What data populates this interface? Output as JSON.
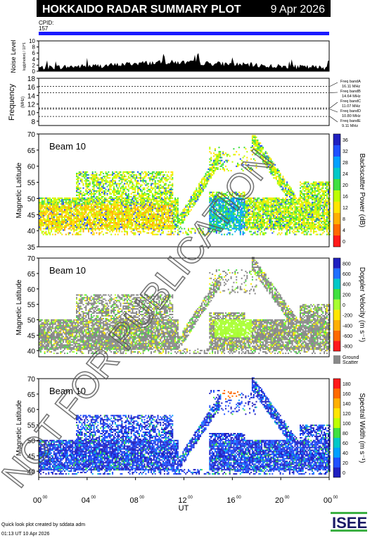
{
  "header": {
    "title": "HOKKAIDO RADAR SUMMARY PLOT",
    "date": "9 Apr 2026",
    "cpid_label": "CPID:",
    "cpid_value": "157"
  },
  "footer": {
    "line1": "Quick look plot created by sddata adm",
    "line2": "01:13 UT 10 Apr 2026",
    "logo": "ISEE",
    "watermark": "NOT FOR PUBLICATION"
  },
  "colors": {
    "cpid_bar": "#1a1aff",
    "ground_scatter": "#888888",
    "accent_green": "#3cb043"
  },
  "chart_data": [
    {
      "id": "noise",
      "type": "area",
      "ylabel": "Noise Level",
      "ylabel_sub": "log(photon) / 10^1",
      "ylim": [
        0,
        10
      ],
      "yticks": [
        "0",
        "2",
        "4",
        "6",
        "8",
        "10"
      ],
      "x": [
        0,
        1,
        2,
        3,
        4,
        5,
        6,
        7,
        8,
        9,
        10,
        11,
        12,
        13,
        14,
        15,
        16,
        17,
        18,
        19,
        20,
        21,
        22,
        23,
        24
      ],
      "values": [
        1.2,
        1.3,
        1.4,
        1.6,
        1.7,
        1.8,
        2.0,
        2.3,
        2.6,
        2.8,
        2.9,
        3.0,
        2.9,
        2.8,
        2.6,
        2.5,
        2.4,
        2.2,
        2.0,
        1.8,
        1.6,
        1.5,
        1.4,
        1.3,
        1.2
      ]
    },
    {
      "id": "frequency",
      "type": "line",
      "ylabel": "Frequency",
      "ylabel_sub": "(MHz)",
      "ylim": [
        7,
        18
      ],
      "yticks": [
        "8",
        "10",
        "12",
        "14",
        "16",
        "18"
      ],
      "bands": [
        {
          "name": "Freq bandA",
          "label": "16.11 MHz",
          "value": 16.11
        },
        {
          "name": "Freq bandB",
          "label": "14.64 MHz",
          "value": 14.64
        },
        {
          "name": "Freq bandC",
          "label": "11.07 MHz",
          "value": 11.07
        },
        {
          "name": "Freq bandD",
          "label": "10.80 MHz",
          "value": 10.8
        },
        {
          "name": "Freq bandE",
          "label": "9.11 MHz",
          "value": 9.11
        }
      ]
    },
    {
      "id": "power",
      "type": "heatmap",
      "beam_label": "Beam 10",
      "ylabel": "Magnetic Latitude",
      "ylim": [
        35,
        70
      ],
      "yticks": [
        "35",
        "40",
        "45",
        "50",
        "55",
        "60",
        "65",
        "70"
      ],
      "colorbar": {
        "label": "Backscatter Power (dB)",
        "ticks": [
          "0",
          "4",
          "8",
          "12",
          "16",
          "20",
          "24",
          "28",
          "32",
          "36"
        ],
        "colors": [
          "#ff1a1a",
          "#ff6a00",
          "#ffb000",
          "#ffe600",
          "#bfff00",
          "#40e040",
          "#00c8c8",
          "#00a0ff",
          "#2050ff",
          "#2020c0"
        ]
      }
    },
    {
      "id": "velocity",
      "type": "heatmap",
      "beam_label": "Beam 10",
      "ylabel": "Magnetic Latitude",
      "ylim": [
        38,
        70
      ],
      "yticks": [
        "40",
        "45",
        "50",
        "55",
        "60",
        "65",
        "70"
      ],
      "colorbar": {
        "label": "Doppler Velocity (m s⁻¹)",
        "ticks": [
          "-800",
          "-600",
          "-400",
          "-200",
          "0",
          "200",
          "400",
          "600",
          "800"
        ],
        "colors": [
          "#ff1a1a",
          "#ff6a00",
          "#ffb000",
          "#ffe600",
          "#a8ff30",
          "#40e040",
          "#00c8c8",
          "#2070ff",
          "#2020c0"
        ],
        "ground_label_1": "Ground",
        "ground_label_2": "Scatter"
      }
    },
    {
      "id": "width",
      "type": "heatmap",
      "beam_label": "Beam 10",
      "ylabel": "Magnetic Latitude",
      "ylim": [
        38,
        70
      ],
      "yticks": [
        "40",
        "45",
        "50",
        "55",
        "60",
        "65",
        "70"
      ],
      "colorbar": {
        "label": "Spectral Width (m s⁻¹)",
        "ticks": [
          "0",
          "20",
          "40",
          "60",
          "80",
          "100",
          "120",
          "140",
          "160",
          "180"
        ],
        "colors": [
          "#2020c0",
          "#2050ff",
          "#00a0ff",
          "#00c8c8",
          "#40e040",
          "#bfff00",
          "#ffe600",
          "#ffb000",
          "#ff6a00",
          "#ff1a1a"
        ]
      }
    }
  ],
  "x_axis": {
    "label": "UT",
    "ticks": [
      "00",
      "04",
      "08",
      "12",
      "16",
      "20",
      "00"
    ],
    "tick_sup": "00"
  }
}
